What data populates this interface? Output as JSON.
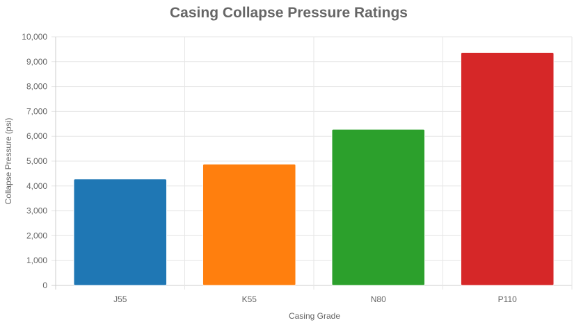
{
  "chart_data": {
    "type": "bar",
    "title": "Casing Collapse Pressure Ratings",
    "xlabel": "Casing Grade",
    "ylabel": "Collapse Pressure (psi)",
    "categories": [
      "J55",
      "K55",
      "N80",
      "P110"
    ],
    "values": [
      4280,
      4880,
      6280,
      9370
    ],
    "colors": [
      "#1f77b4",
      "#ff7f0e",
      "#2ca02c",
      "#d62728"
    ],
    "ylim": [
      0,
      10000
    ],
    "yticks": [
      "0",
      "1,000",
      "2,000",
      "3,000",
      "4,000",
      "5,000",
      "6,000",
      "7,000",
      "8,000",
      "9,000",
      "10,000"
    ],
    "grid": true,
    "legend": "none"
  }
}
